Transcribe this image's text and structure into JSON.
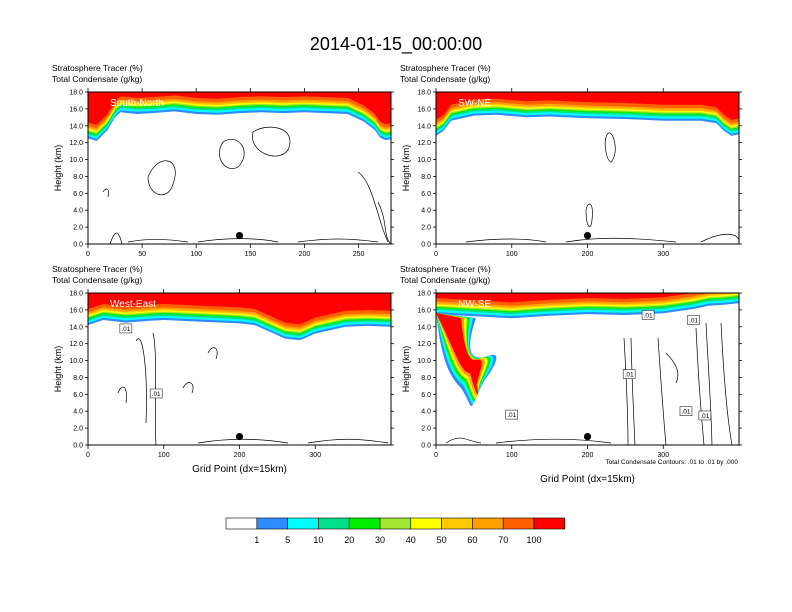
{
  "title": "2014-01-15_00:00:00",
  "field1_label": "Stratosphere Tracer   (%)",
  "field2_label": "Total Condensate   (g/kg)",
  "ylabel": "Height (km)",
  "xlabel": "Grid Point (dx=15km)",
  "footnote": "Total Condensate Contours: .01 to .01 by .000",
  "colors": {
    "levels": [
      "#ffffff",
      "#2e8bff",
      "#00ffff",
      "#00e08a",
      "#00ee00",
      "#a0e632",
      "#ffff00",
      "#ffc800",
      "#ffa000",
      "#ff6000",
      "#ff0000"
    ],
    "condensate": "#000000",
    "marker": "#000000"
  },
  "colorbar": {
    "ticks": [
      "1",
      "5",
      "10",
      "20",
      "30",
      "40",
      "50",
      "60",
      "70",
      "100"
    ]
  },
  "chart_data": [
    {
      "type": "heatmap",
      "panel": "South-North",
      "xlim": [
        0,
        280
      ],
      "ylim": [
        0,
        18
      ],
      "xticks": [
        0,
        50,
        100,
        150,
        200,
        250
      ],
      "yticks": [
        "0.0",
        "2.0",
        "4.0",
        "6.0",
        "8.0",
        "10.0",
        "12.0",
        "14.0",
        "16.0",
        "18.0"
      ],
      "tropopause": {
        "x": [
          0,
          8,
          18,
          25,
          30,
          45,
          60,
          80,
          100,
          120,
          140,
          160,
          180,
          200,
          220,
          240,
          255,
          265,
          270,
          275,
          280
        ],
        "y": [
          12.5,
          12.2,
          13.5,
          15,
          15.6,
          15.4,
          15.5,
          15.7,
          15.4,
          15.3,
          15.5,
          15.6,
          15.5,
          15.6,
          15.5,
          15.4,
          14.5,
          13.5,
          12.6,
          12.3,
          12.4
        ]
      },
      "marker": {
        "x": 140,
        "y": 1.0
      },
      "contour_labels": []
    },
    {
      "type": "heatmap",
      "panel": "SW-NE",
      "xlim": [
        0,
        400
      ],
      "ylim": [
        0,
        18
      ],
      "xticks": [
        0,
        100,
        200,
        300
      ],
      "yticks": [
        "0.0",
        "2.0",
        "4.0",
        "6.0",
        "8.0",
        "10.0",
        "12.0",
        "14.0",
        "16.0",
        "18.0"
      ],
      "tropopause": {
        "x": [
          0,
          10,
          20,
          50,
          80,
          120,
          150,
          200,
          250,
          300,
          350,
          370,
          380,
          390,
          400
        ],
        "y": [
          12.8,
          13.4,
          14.6,
          15.2,
          15.3,
          15.0,
          15.1,
          14.9,
          14.8,
          14.6,
          14.6,
          14.3,
          13.4,
          12.8,
          13.0
        ]
      },
      "marker": {
        "x": 200,
        "y": 1.0
      },
      "contour_labels": []
    },
    {
      "type": "heatmap",
      "panel": "West-East",
      "xlim": [
        0,
        400
      ],
      "ylim": [
        0,
        18
      ],
      "xticks": [
        0,
        100,
        200,
        300
      ],
      "yticks": [
        "0.0",
        "2.0",
        "4.0",
        "6.0",
        "8.0",
        "10.0",
        "12.0",
        "14.0",
        "16.0",
        "18.0"
      ],
      "tropopause": {
        "x": [
          0,
          20,
          50,
          80,
          100,
          150,
          200,
          220,
          240,
          260,
          280,
          300,
          340,
          370,
          400
        ],
        "y": [
          14.2,
          14.8,
          14.5,
          14.7,
          14.8,
          14.6,
          14.4,
          14.2,
          13.4,
          12.6,
          12.4,
          13.2,
          14.0,
          14.1,
          14.0
        ]
      },
      "marker": {
        "x": 200,
        "y": 1.0
      },
      "contour_labels": [
        {
          "x": 50,
          "y": 13.8,
          "text": ".01"
        },
        {
          "x": 90,
          "y": 6.1,
          "text": ".01"
        }
      ]
    },
    {
      "type": "heatmap",
      "panel": "NW-SE",
      "xlim": [
        0,
        400
      ],
      "ylim": [
        0,
        18
      ],
      "xticks": [
        0,
        100,
        200,
        300
      ],
      "yticks": [
        "0.0",
        "2.0",
        "4.0",
        "6.0",
        "8.0",
        "10.0",
        "12.0",
        "14.0",
        "16.0",
        "18.0"
      ],
      "tropopause": {
        "x": [
          0,
          60,
          100,
          150,
          200,
          250,
          300,
          340,
          360,
          380,
          400
        ],
        "y": [
          15.5,
          15.2,
          15.0,
          15.3,
          15.5,
          15.4,
          15.6,
          16.1,
          16.5,
          16.6,
          16.8
        ]
      },
      "marker": {
        "x": 200,
        "y": 1.0
      },
      "contour_labels": [
        {
          "x": 280,
          "y": 15.4,
          "text": ".01"
        },
        {
          "x": 340,
          "y": 14.8,
          "text": ".01"
        },
        {
          "x": 255,
          "y": 8.4,
          "text": ".01"
        },
        {
          "x": 100,
          "y": 3.6,
          "text": ".01"
        },
        {
          "x": 330,
          "y": 4.0,
          "text": ".01"
        },
        {
          "x": 355,
          "y": 3.5,
          "text": ".01"
        }
      ]
    }
  ]
}
